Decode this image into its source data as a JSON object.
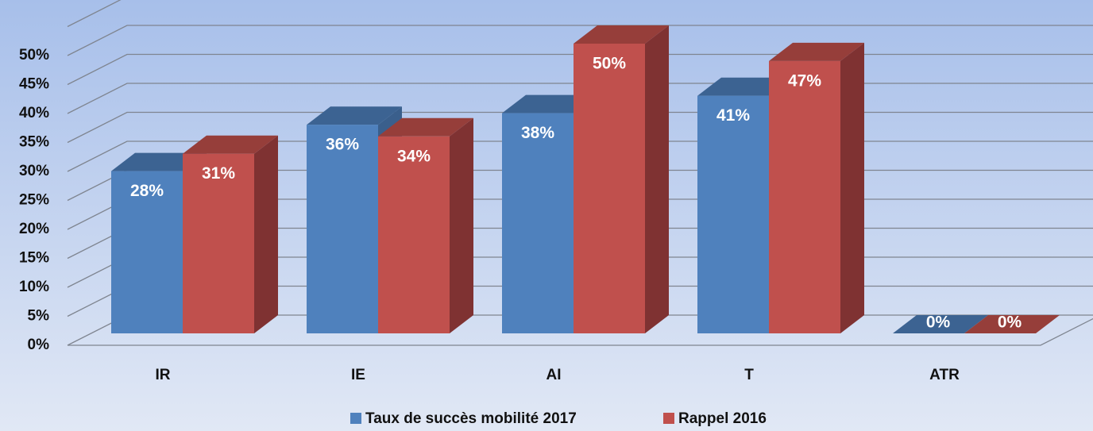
{
  "chart_data": {
    "type": "bar3d",
    "categories": [
      "IR",
      "IE",
      "AI",
      "T",
      "ATR"
    ],
    "series": [
      {
        "name": "Taux de succès mobilité 2017",
        "color": "#4f81bd",
        "top_color": "#3c6392",
        "side_color": "#3a5f8c",
        "values": [
          28,
          36,
          38,
          41,
          0
        ],
        "value_labels": [
          "28%",
          "36%",
          "38%",
          "41%",
          "0%"
        ]
      },
      {
        "name": "Rappel 2016",
        "color": "#c0504d",
        "top_color": "#963e3a",
        "side_color": "#7f3232",
        "values": [
          31,
          34,
          50,
          47,
          0
        ],
        "value_labels": [
          "31%",
          "34%",
          "50%",
          "47%",
          "0%"
        ]
      }
    ],
    "ylim": [
      0,
      55
    ],
    "yticks": [
      {
        "value": 0,
        "label": "0%"
      },
      {
        "value": 5,
        "label": "5%"
      },
      {
        "value": 10,
        "label": "10%"
      },
      {
        "value": 15,
        "label": "15%"
      },
      {
        "value": 20,
        "label": "20%"
      },
      {
        "value": 25,
        "label": "25%"
      },
      {
        "value": 30,
        "label": "30%"
      },
      {
        "value": 35,
        "label": "35%"
      },
      {
        "value": 40,
        "label": "40%"
      },
      {
        "value": 45,
        "label": "45%"
      },
      {
        "value": 50,
        "label": "50%"
      }
    ],
    "grid": true,
    "legend": "bottom"
  }
}
